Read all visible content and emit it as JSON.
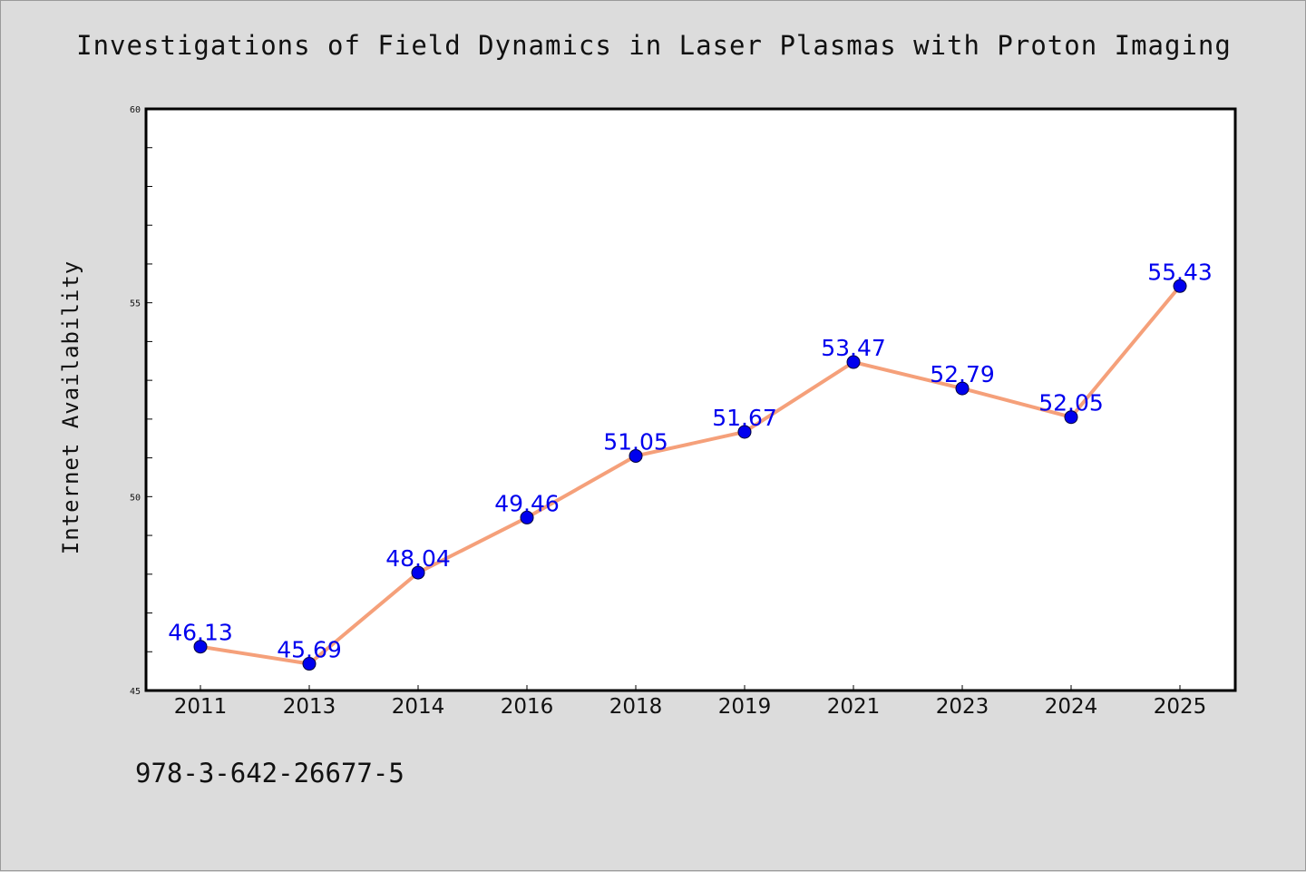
{
  "chart_data": {
    "type": "line",
    "title": "Investigations of Field Dynamics in Laser Plasmas with Proton Imaging",
    "xlabel": "",
    "ylabel": "Internet Availability",
    "categories": [
      "2011",
      "2013",
      "2014",
      "2016",
      "2018",
      "2019",
      "2021",
      "2023",
      "2024",
      "2025"
    ],
    "series": [
      {
        "values": [
          46.13,
          45.69,
          48.04,
          49.46,
          51.05,
          51.67,
          53.47,
          52.79,
          52.05,
          55.43
        ],
        "data_labels": [
          "46.13",
          "45.69",
          "48.04",
          "49.46",
          "51.05",
          "51.67",
          "53.47",
          "52.79",
          "52.05",
          "55.43"
        ]
      }
    ],
    "ylim": [
      45,
      60
    ],
    "yticks": [
      "45",
      "50",
      "55",
      "60"
    ],
    "grid": false,
    "legend": "none",
    "colors": {
      "line": "#f5a07a",
      "marker": "#0000ee",
      "data_label": "#0000ee",
      "plot_background": "#ffffff",
      "figure_background": "#dcdcdc"
    }
  },
  "footnote": "978-3-642-26677-5"
}
